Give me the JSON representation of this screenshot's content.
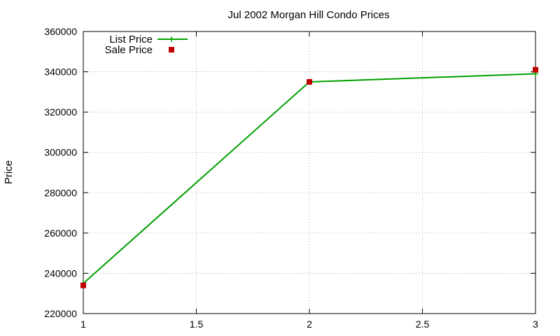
{
  "chart_data": {
    "type": "line",
    "title": "Jul 2002 Morgan Hill Condo Prices",
    "xlabel": "",
    "ylabel": "Price",
    "xlim": [
      1,
      3
    ],
    "ylim": [
      220000,
      360000
    ],
    "xticks": [
      1,
      1.5,
      2,
      2.5,
      3
    ],
    "xtick_labels": [
      "1",
      "1.5",
      "2",
      "2.5",
      "3"
    ],
    "yticks": [
      220000,
      240000,
      260000,
      280000,
      300000,
      320000,
      340000,
      360000
    ],
    "ytick_labels": [
      "220000",
      "240000",
      "260000",
      "280000",
      "300000",
      "320000",
      "340000",
      "360000"
    ],
    "grid": true,
    "legend": "top-left",
    "series": [
      {
        "name": "List Price",
        "style": "linespoints",
        "color": "#00a000",
        "x": [
          1,
          2,
          3
        ],
        "y": [
          235000,
          335000,
          339000
        ]
      },
      {
        "name": "Sale Price",
        "style": "points",
        "color": "#c00000",
        "x": [
          1,
          2,
          3
        ],
        "y": [
          234000,
          335000,
          341000
        ]
      }
    ]
  }
}
